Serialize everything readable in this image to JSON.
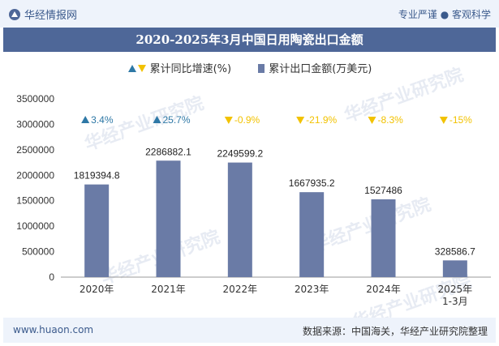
{
  "header": {
    "logo_text": "华经情报网",
    "right_links": "专业严谨 ● 客观科学"
  },
  "title": "2020-2025年3月中国日用陶瓷出口金额",
  "legend": {
    "growth": "累计同比增速(%)",
    "amount": "累计出口金额(万美元)"
  },
  "watermark": "华经产业研究院",
  "footer": {
    "site": "www.huaon.com",
    "source": "数据来源：中国海关，华经产业研究院整理"
  },
  "colors": {
    "bar": "#6a7ba6",
    "up": "#2e78a6",
    "down": "#f2c200"
  },
  "chart_data": {
    "type": "bar",
    "categories": [
      "2020年",
      "2021年",
      "2022年",
      "2023年",
      "2024年",
      "2025年\n1-3月"
    ],
    "series": [
      {
        "name": "累计出口金额(万美元)",
        "values": [
          1819394.8,
          2286882.1,
          2249599.2,
          1667935.2,
          1527486,
          328586.7
        ],
        "labels": [
          "1819394.8",
          "2286882.1",
          "2249599.2",
          "1667935.2",
          "1527486",
          "328586.7"
        ]
      },
      {
        "name": "累计同比增速(%)",
        "values": [
          3.4,
          25.7,
          -0.9,
          -21.9,
          -8.3,
          -15
        ],
        "labels": [
          "3.4%",
          "25.7%",
          "-0.9%",
          "-21.9%",
          "-8.3%",
          "-15%"
        ]
      }
    ],
    "ylim": [
      0,
      3500000
    ],
    "yticks": [
      "0",
      "500000",
      "1000000",
      "1500000",
      "2000000",
      "2500000",
      "3000000",
      "3500000"
    ],
    "grid": false
  }
}
